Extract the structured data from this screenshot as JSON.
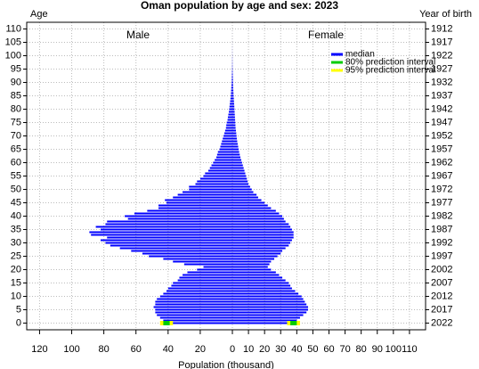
{
  "chart_data": {
    "type": "pyramid",
    "title": "Oman population by age and sex: 2023",
    "y_label": "Age",
    "y2_label": "Year of birth",
    "x_label": "Population (thousand)",
    "left_label": "Male",
    "right_label": "Female",
    "ages": [
      0,
      1,
      2,
      3,
      4,
      5,
      6,
      7,
      8,
      9,
      10,
      11,
      12,
      13,
      14,
      15,
      16,
      17,
      18,
      19,
      20,
      21,
      22,
      23,
      24,
      25,
      26,
      27,
      28,
      29,
      30,
      31,
      32,
      33,
      34,
      35,
      36,
      37,
      38,
      39,
      40,
      41,
      42,
      43,
      44,
      45,
      46,
      47,
      48,
      49,
      50,
      51,
      52,
      53,
      54,
      55,
      56,
      57,
      58,
      59,
      60,
      61,
      62,
      63,
      64,
      65,
      66,
      67,
      68,
      69,
      70,
      71,
      72,
      73,
      74,
      75,
      76,
      77,
      78,
      79,
      80,
      81,
      82,
      83,
      84,
      85,
      86,
      87,
      88,
      89,
      90,
      91,
      92,
      93,
      94,
      95,
      96,
      97,
      98,
      99,
      100,
      101,
      102,
      103,
      104,
      105,
      106,
      107,
      108,
      109,
      110
    ],
    "series": [
      {
        "name": "median",
        "color": "#0000ff",
        "male": [
          41,
          43,
          45,
          47,
          48,
          48,
          49,
          48,
          48,
          47,
          45,
          43,
          41,
          40,
          38,
          37,
          34,
          33,
          31,
          28,
          22,
          18,
          30,
          37,
          43,
          52,
          56,
          63,
          70,
          76,
          79,
          82,
          78,
          88,
          89,
          82,
          85,
          79,
          78,
          65,
          67,
          61,
          53,
          46,
          46,
          41,
          42,
          37,
          34,
          31,
          27,
          27,
          23,
          22,
          20,
          18,
          17,
          15,
          14,
          13,
          12,
          11,
          10,
          9.5,
          9,
          8,
          7.5,
          7,
          6.5,
          6,
          5.5,
          5,
          4.5,
          4,
          3.8,
          3.5,
          3,
          2.8,
          2.5,
          2.2,
          2,
          1.8,
          1.6,
          1.4,
          1.2,
          1,
          0.9,
          0.8,
          0.7,
          0.6,
          0.5,
          0.4,
          0.35,
          0.3,
          0.25,
          0.2,
          0.15,
          0.12,
          0.1,
          0.08,
          0.06,
          0.05,
          0.04,
          0.03,
          0.02,
          0.02,
          0.01,
          0.01,
          0.01,
          0.01,
          0
        ],
        "female": [
          38,
          40,
          42,
          44,
          46,
          47,
          47,
          46,
          45,
          44,
          43,
          41,
          39,
          37,
          36,
          35,
          33,
          31,
          29,
          27,
          24,
          22,
          23,
          24,
          26,
          28,
          30,
          31,
          33,
          35,
          36,
          37,
          38,
          38,
          38,
          37,
          36,
          35,
          33,
          32,
          31,
          29,
          27,
          24,
          22,
          20,
          18,
          16,
          15,
          13,
          12,
          11,
          10,
          9.5,
          9,
          8.5,
          8,
          7.5,
          7,
          6.5,
          6,
          5.5,
          5,
          4.6,
          4.2,
          3.9,
          3.6,
          3.3,
          3,
          2.8,
          2.6,
          2.4,
          2.2,
          2,
          1.9,
          1.8,
          1.7,
          1.6,
          1.5,
          1.4,
          1.3,
          1.2,
          1.1,
          1,
          0.9,
          0.8,
          0.7,
          0.6,
          0.5,
          0.45,
          0.4,
          0.35,
          0.3,
          0.25,
          0.2,
          0.15,
          0.12,
          0.1,
          0.08,
          0.06,
          0.05,
          0.04,
          0.03,
          0.02,
          0.02,
          0.01,
          0.01,
          0.01,
          0.01,
          0.01,
          0
        ]
      },
      {
        "name": "80% prediction interval",
        "color": "#00cc00",
        "age": 0,
        "male": [
          39,
          43
        ],
        "female": [
          36,
          40
        ]
      },
      {
        "name": "95% prediction interval",
        "color": "#ffff00",
        "age": 0,
        "male": [
          37,
          45
        ],
        "female": [
          34,
          42
        ]
      }
    ],
    "xlim_male": [
      0,
      128
    ],
    "xticks_male": [
      0,
      20,
      40,
      60,
      80,
      100,
      120
    ],
    "xlim_female": [
      0,
      120
    ],
    "xticks_female": [
      10,
      20,
      30,
      40,
      50,
      60,
      70,
      80,
      90,
      100,
      110
    ],
    "ylim": [
      -2.5,
      112.5
    ],
    "yticks": [
      0,
      5,
      10,
      15,
      20,
      25,
      30,
      35,
      40,
      45,
      50,
      55,
      60,
      65,
      70,
      75,
      80,
      85,
      90,
      95,
      100,
      105,
      110
    ],
    "y2lim": [
      2024.5,
      1909.5
    ],
    "y2ticks": [
      2022,
      2017,
      2012,
      2007,
      2002,
      1997,
      1992,
      1987,
      1982,
      1977,
      1972,
      1967,
      1962,
      1957,
      1952,
      1947,
      1942,
      1937,
      1932,
      1927,
      1922,
      1917,
      1912
    ],
    "grid": true
  }
}
